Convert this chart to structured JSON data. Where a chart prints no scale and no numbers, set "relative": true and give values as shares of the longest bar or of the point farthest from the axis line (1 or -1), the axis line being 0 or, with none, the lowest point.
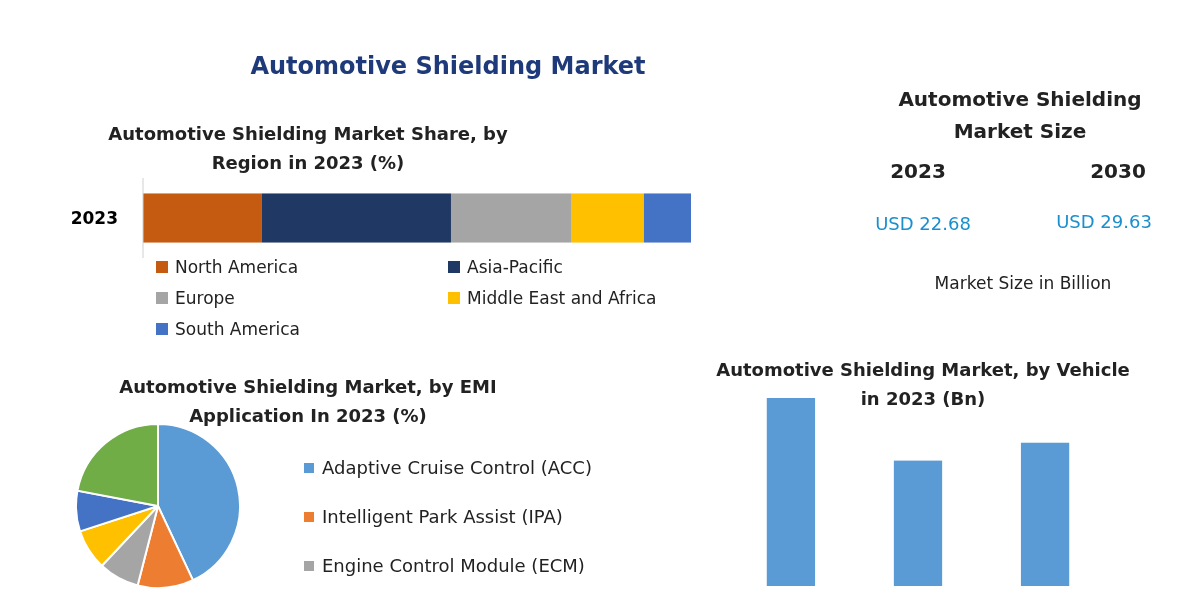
{
  "chart_data": [
    {
      "type": "bar",
      "orientation": "horizontal",
      "stacked": true,
      "relative": true,
      "title": "Automotive Shielding Market Share, by Region in 2023 (%)",
      "subtitle": "Automotive Shielding Market",
      "categories": [
        "2023"
      ],
      "legend": "bottom",
      "series": [
        {
          "name": "North America",
          "color": "#c55a11",
          "values": [
            0.217
          ]
        },
        {
          "name": "Asia-Pacific",
          "color": "#203864",
          "values": [
            0.345
          ]
        },
        {
          "name": "Europe",
          "color": "#a5a5a5",
          "values": [
            0.219
          ]
        },
        {
          "name": "Middle East and Africa",
          "color": "#ffc000",
          "values": [
            0.133
          ]
        },
        {
          "name": "South America",
          "color": "#4472c4",
          "values": [
            0.086
          ]
        }
      ]
    },
    {
      "type": "other",
      "title": "Automotive Shielding Market Size",
      "annotations": [
        "2023",
        "2030",
        "USD 22.68",
        "USD 29.63",
        "Market Size in Billion"
      ]
    },
    {
      "type": "pie",
      "title": "Automotive Shielding Market, by EMI Application In 2023 (%)",
      "legend": "right",
      "categories": [
        "Adaptive Cruise Control (ACC)",
        "Intelligent Park Assist (IPA)",
        "Engine Control Module (ECM)",
        null,
        null,
        null
      ],
      "values": [
        43,
        11,
        8,
        8,
        8,
        22
      ],
      "colors": [
        "#5b9bd5",
        "#ed7d31",
        "#a5a5a5",
        "#ffc000",
        "#4472c4",
        "#70ad47"
      ]
    },
    {
      "type": "bar",
      "relative": true,
      "title": "Automotive Shielding Market, by Vehicle in 2023 (Bn)",
      "categories": [
        null,
        null,
        null
      ],
      "values": [
        1,
        0.667,
        0.762
      ],
      "color": "#5b9bd5"
    }
  ]
}
